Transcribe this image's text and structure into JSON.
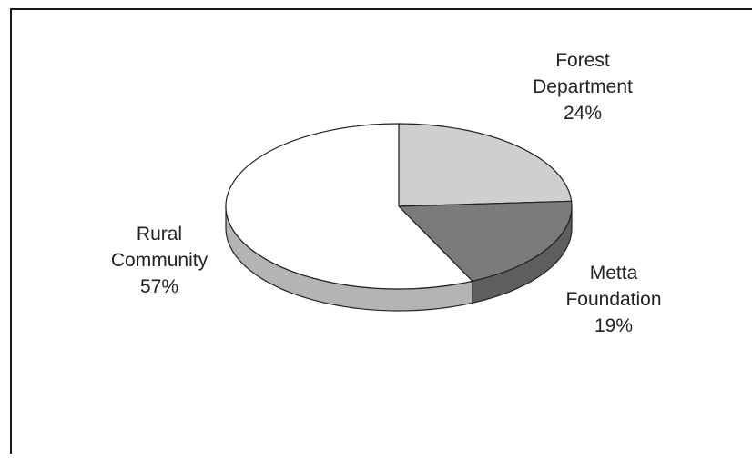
{
  "chart_data": {
    "type": "pie",
    "style": "3d",
    "slices": [
      {
        "label": "Forest Department",
        "label_lines": [
          "Forest",
          "Department"
        ],
        "value": 24,
        "value_text": "24%",
        "color": "#cfcfcf",
        "side_color": "#a8a8a8"
      },
      {
        "label": "Metta Foundation",
        "label_lines": [
          "Metta",
          "Foundation"
        ],
        "value": 19,
        "value_text": "19%",
        "color": "#7b7b7b",
        "side_color": "#5e5e5e"
      },
      {
        "label": "Rural Community",
        "label_lines": [
          "Rural",
          "Community"
        ],
        "value": 57,
        "value_text": "57%",
        "color": "#ffffff",
        "side_color": "#b4b4b4"
      }
    ],
    "start_angle": "12 o'clock",
    "direction": "clockwise"
  }
}
